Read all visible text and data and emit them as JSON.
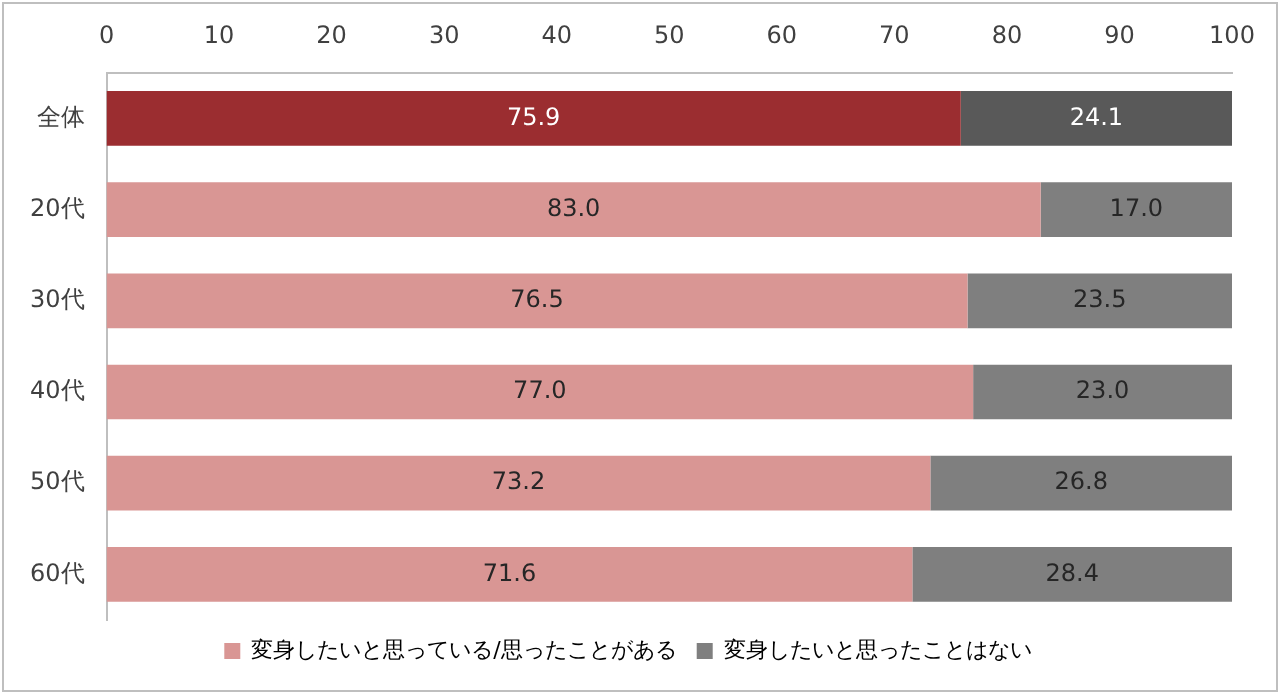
{
  "chart_data": {
    "type": "bar",
    "orientation": "horizontal",
    "stacked": true,
    "categories": [
      "全体",
      "20代",
      "30代",
      "40代",
      "50代",
      "60代"
    ],
    "series": [
      {
        "name": "変身したいと思っている/思ったことがある",
        "color": "#d99694",
        "colors": [
          "#9b2d30",
          "#d99694",
          "#d99694",
          "#d99694",
          "#d99694",
          "#d99694"
        ],
        "values": [
          75.9,
          83.0,
          76.5,
          77.0,
          73.2,
          71.6
        ],
        "value_labels": [
          "75.9",
          "83.0",
          "76.5",
          "77.0",
          "73.2",
          "71.6"
        ]
      },
      {
        "name": "変身したいと思ったことはない",
        "color": "#7f7f7f",
        "colors": [
          "#595959",
          "#7f7f7f",
          "#7f7f7f",
          "#7f7f7f",
          "#7f7f7f",
          "#7f7f7f"
        ],
        "values": [
          24.1,
          17.0,
          23.5,
          23.0,
          26.8,
          28.4
        ],
        "value_labels": [
          "24.1",
          "17.0",
          "23.5",
          "23.0",
          "26.8",
          "28.4"
        ]
      }
    ],
    "xlim": [
      0,
      100
    ],
    "xticks": [
      0,
      10,
      20,
      30,
      40,
      50,
      60,
      70,
      80,
      90,
      100
    ],
    "grid": false,
    "legend": "bottom"
  }
}
